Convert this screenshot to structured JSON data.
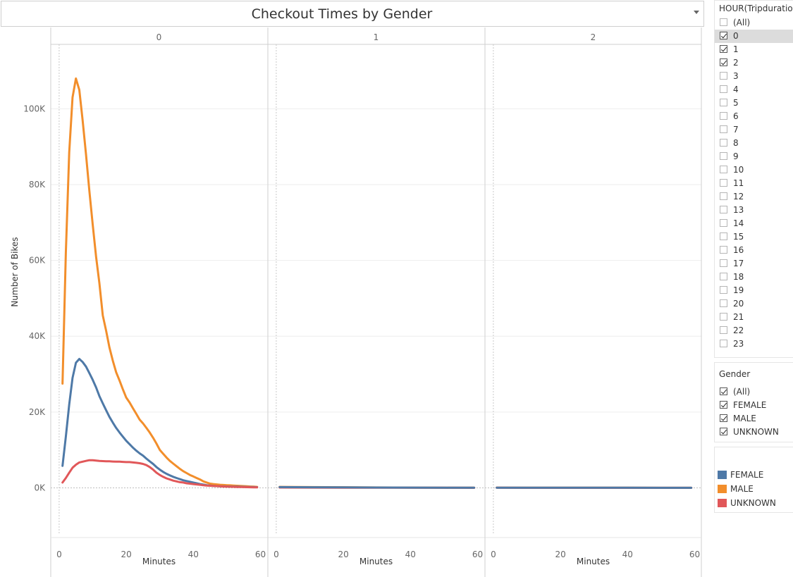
{
  "title": "Checkout Times by Gender",
  "colors": {
    "FEMALE": "#4e79a7",
    "MALE": "#f28e2b",
    "UNKNOWN": "#e15759"
  },
  "hour_filter": {
    "title": "HOUR(Tripduration)",
    "items": [
      {
        "label": "(All)",
        "checked": false
      },
      {
        "label": "0",
        "checked": true,
        "highlight": true
      },
      {
        "label": "1",
        "checked": true
      },
      {
        "label": "2",
        "checked": true
      },
      {
        "label": "3",
        "checked": false
      },
      {
        "label": "4",
        "checked": false
      },
      {
        "label": "5",
        "checked": false
      },
      {
        "label": "6",
        "checked": false
      },
      {
        "label": "7",
        "checked": false
      },
      {
        "label": "8",
        "checked": false
      },
      {
        "label": "9",
        "checked": false
      },
      {
        "label": "10",
        "checked": false
      },
      {
        "label": "11",
        "checked": false
      },
      {
        "label": "12",
        "checked": false
      },
      {
        "label": "13",
        "checked": false
      },
      {
        "label": "14",
        "checked": false
      },
      {
        "label": "15",
        "checked": false
      },
      {
        "label": "16",
        "checked": false
      },
      {
        "label": "17",
        "checked": false
      },
      {
        "label": "18",
        "checked": false
      },
      {
        "label": "19",
        "checked": false
      },
      {
        "label": "20",
        "checked": false
      },
      {
        "label": "21",
        "checked": false
      },
      {
        "label": "22",
        "checked": false
      },
      {
        "label": "23",
        "checked": false
      }
    ]
  },
  "gender_filter": {
    "title": "Gender",
    "items": [
      {
        "label": "(All)",
        "checked": true
      },
      {
        "label": "FEMALE",
        "checked": true
      },
      {
        "label": "MALE",
        "checked": true
      },
      {
        "label": "UNKNOWN",
        "checked": true
      }
    ]
  },
  "legend": {
    "items": [
      {
        "label": "FEMALE",
        "color": "#4e79a7"
      },
      {
        "label": "MALE",
        "color": "#f28e2b"
      },
      {
        "label": "UNKNOWN",
        "color": "#e15759"
      }
    ]
  },
  "chart_data": {
    "type": "line",
    "ylabel": "Number of Bikes",
    "xlabel": "Minutes",
    "ylim": [
      -12000,
      117000
    ],
    "xlim": [
      -2.5,
      62
    ],
    "yticks": [
      0,
      20000,
      40000,
      60000,
      80000,
      100000
    ],
    "ytick_labels": [
      "0K",
      "20K",
      "40K",
      "60K",
      "80K",
      "100K"
    ],
    "xticks": [
      0,
      20,
      40,
      60
    ],
    "panels": [
      {
        "label": "0",
        "series": [
          {
            "name": "MALE",
            "x": [
              1,
              2,
              3,
              4,
              5,
              6,
              7,
              8,
              9,
              10,
              11,
              12,
              13,
              14,
              15,
              16,
              17,
              18,
              19,
              20,
              21,
              22,
              23,
              24,
              25,
              26,
              27,
              28,
              29,
              30,
              31,
              32,
              33,
              34,
              35,
              36,
              37,
              38,
              39,
              40,
              41,
              42,
              43,
              44,
              45,
              46,
              47,
              48,
              49,
              50,
              51,
              52,
              53,
              54,
              55,
              56,
              57,
              58,
              59
            ],
            "y": [
              27500,
              62000,
              88500,
              103000,
              108000,
              105000,
              97000,
              88000,
              78500,
              69500,
              61000,
              54000,
              45500,
              41500,
              37000,
              33500,
              30500,
              28300,
              26000,
              23800,
              22500,
              21000,
              19500,
              18000,
              17000,
              15800,
              14600,
              13200,
              11700,
              10000,
              9000,
              8000,
              7100,
              6400,
              5700,
              5000,
              4400,
              3900,
              3400,
              3000,
              2600,
              2200,
              1700,
              1400,
              1100,
              1000,
              900,
              800,
              750,
              700,
              650,
              600,
              550,
              500,
              450,
              400,
              350,
              300,
              250
            ]
          },
          {
            "name": "FEMALE",
            "x": [
              1,
              2,
              3,
              4,
              5,
              6,
              7,
              8,
              9,
              10,
              11,
              12,
              13,
              14,
              15,
              16,
              17,
              18,
              19,
              20,
              21,
              22,
              23,
              24,
              25,
              26,
              27,
              28,
              29,
              30,
              31,
              32,
              33,
              34,
              35,
              36,
              37,
              38,
              39,
              40,
              41,
              42,
              43,
              44,
              45,
              46,
              47,
              48,
              49,
              50,
              51,
              52,
              53,
              54,
              55,
              56,
              57,
              58,
              59
            ],
            "y": [
              5800,
              13500,
              22000,
              29000,
              33000,
              34000,
              33200,
              32000,
              30300,
              28500,
              26500,
              24200,
              22300,
              20500,
              18700,
              17200,
              15800,
              14600,
              13500,
              12400,
              11500,
              10600,
              9800,
              9100,
              8500,
              7700,
              7000,
              6300,
              5500,
              4800,
              4200,
              3700,
              3300,
              2900,
              2600,
              2300,
              2000,
              1800,
              1600,
              1400,
              1200,
              1000,
              850,
              700,
              600,
              500,
              450,
              400,
              380,
              360,
              340,
              320,
              300,
              280,
              260,
              240,
              220,
              200,
              180
            ]
          },
          {
            "name": "UNKNOWN",
            "x": [
              1,
              2,
              3,
              4,
              5,
              6,
              7,
              8,
              9,
              10,
              11,
              12,
              13,
              14,
              15,
              16,
              17,
              18,
              19,
              20,
              21,
              22,
              23,
              24,
              25,
              26,
              27,
              28,
              29,
              30,
              31,
              32,
              33,
              34,
              35,
              36,
              37,
              38,
              39,
              40,
              41,
              42,
              43,
              44,
              45,
              46,
              47,
              48,
              49,
              50,
              51,
              52,
              53,
              54,
              55,
              56,
              57,
              58,
              59
            ],
            "y": [
              1400,
              2600,
              4000,
              5300,
              6100,
              6700,
              6900,
              7100,
              7300,
              7300,
              7200,
              7100,
              7050,
              7000,
              7000,
              6950,
              6900,
              6900,
              6850,
              6800,
              6800,
              6700,
              6600,
              6500,
              6300,
              6000,
              5500,
              4800,
              4000,
              3400,
              2900,
              2500,
              2200,
              1900,
              1700,
              1500,
              1400,
              1200,
              1100,
              1000,
              900,
              800,
              700,
              600,
              550,
              500,
              450,
              400,
              350,
              300,
              280,
              260,
              240,
              220,
              200,
              180,
              160,
              140,
              120
            ]
          }
        ]
      },
      {
        "label": "1",
        "series": [
          {
            "name": "MALE",
            "x": [
              1,
              10,
              20,
              30,
              40,
              50,
              59
            ],
            "y": [
              250,
              200,
              150,
              100,
              60,
              40,
              20
            ]
          },
          {
            "name": "UNKNOWN",
            "x": [
              1,
              10,
              20,
              30,
              40,
              50,
              59
            ],
            "y": [
              80,
              60,
              50,
              40,
              30,
              20,
              10
            ]
          },
          {
            "name": "FEMALE",
            "x": [
              1,
              10,
              20,
              30,
              40,
              50,
              59
            ],
            "y": [
              200,
              160,
              120,
              90,
              60,
              40,
              20
            ]
          }
        ]
      },
      {
        "label": "2",
        "series": [
          {
            "name": "MALE",
            "x": [
              1,
              10,
              20,
              30,
              40,
              50,
              59
            ],
            "y": [
              60,
              50,
              40,
              30,
              20,
              15,
              10
            ]
          },
          {
            "name": "UNKNOWN",
            "x": [
              1,
              10,
              20,
              30,
              40,
              50,
              59
            ],
            "y": [
              20,
              15,
              12,
              10,
              8,
              5,
              3
            ]
          },
          {
            "name": "FEMALE",
            "x": [
              1,
              10,
              20,
              30,
              40,
              50,
              59
            ],
            "y": [
              40,
              35,
              30,
              25,
              20,
              15,
              10
            ]
          }
        ]
      }
    ]
  }
}
